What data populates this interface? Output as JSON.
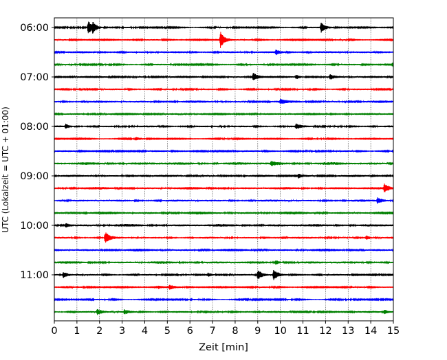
{
  "chart_data": {
    "type": "line",
    "title": "",
    "xlabel": "Zeit  [min]",
    "ylabel": "UTC (Lokalzeit = UTC + 01:00)",
    "xlim": [
      0,
      15
    ],
    "x_ticks": [
      0,
      1,
      2,
      3,
      4,
      5,
      6,
      7,
      8,
      9,
      10,
      11,
      12,
      13,
      14,
      15
    ],
    "x_grid": true,
    "y_grid": false,
    "trace_spacing_minutes": 15,
    "y_tick_labels": [
      {
        "row": 0,
        "label": "06:00"
      },
      {
        "row": 4,
        "label": "07:00"
      },
      {
        "row": 8,
        "label": "08:00"
      },
      {
        "row": 12,
        "label": "09:00"
      },
      {
        "row": 16,
        "label": "10:00"
      },
      {
        "row": 20,
        "label": "11:00"
      }
    ],
    "series": [
      {
        "start": "06:00",
        "color": "#000000",
        "baseline_amp": 0.9,
        "events": [
          {
            "t": 1.5,
            "amp": 10
          },
          {
            "t": 1.7,
            "amp": 6
          },
          {
            "t": 11.8,
            "amp": 7
          }
        ]
      },
      {
        "start": "06:15",
        "color": "#ff0000",
        "baseline_amp": 0.9,
        "events": [
          {
            "t": 7.35,
            "amp": 12
          }
        ]
      },
      {
        "start": "06:30",
        "color": "#0000ff",
        "baseline_amp": 1.3,
        "events": [
          {
            "t": 9.8,
            "amp": 3
          }
        ]
      },
      {
        "start": "06:45",
        "color": "#008000",
        "baseline_amp": 1.0,
        "events": [
          {
            "t": 14.95,
            "amp": 3
          }
        ]
      },
      {
        "start": "07:00",
        "color": "#000000",
        "baseline_amp": 1.4,
        "events": [
          {
            "t": 8.8,
            "amp": 6
          },
          {
            "t": 10.7,
            "amp": 3
          },
          {
            "t": 12.2,
            "amp": 3
          }
        ]
      },
      {
        "start": "07:15",
        "color": "#ff0000",
        "baseline_amp": 1.1,
        "events": []
      },
      {
        "start": "07:30",
        "color": "#0000ff",
        "baseline_amp": 1.5,
        "events": [
          {
            "t": 10.0,
            "amp": 2.5
          }
        ]
      },
      {
        "start": "07:45",
        "color": "#008000",
        "baseline_amp": 1.6,
        "events": []
      },
      {
        "start": "08:00",
        "color": "#000000",
        "baseline_amp": 1.2,
        "events": [
          {
            "t": 0.5,
            "amp": 3
          },
          {
            "t": 10.7,
            "amp": 3
          }
        ]
      },
      {
        "start": "08:15",
        "color": "#ff0000",
        "baseline_amp": 0.8,
        "events": [
          {
            "t": 3.6,
            "amp": 2
          }
        ]
      },
      {
        "start": "08:30",
        "color": "#0000ff",
        "baseline_amp": 1.1,
        "events": []
      },
      {
        "start": "08:45",
        "color": "#008000",
        "baseline_amp": 1.8,
        "events": [
          {
            "t": 9.6,
            "amp": 3
          }
        ]
      },
      {
        "start": "09:00",
        "color": "#000000",
        "baseline_amp": 1.4,
        "events": [
          {
            "t": 10.8,
            "amp": 3
          }
        ]
      },
      {
        "start": "09:15",
        "color": "#ff0000",
        "baseline_amp": 1.6,
        "events": [
          {
            "t": 14.6,
            "amp": 6
          }
        ]
      },
      {
        "start": "09:30",
        "color": "#0000ff",
        "baseline_amp": 1.4,
        "events": [
          {
            "t": 14.3,
            "amp": 4
          }
        ]
      },
      {
        "start": "09:45",
        "color": "#008000",
        "baseline_amp": 1.8,
        "events": []
      },
      {
        "start": "10:00",
        "color": "#000000",
        "baseline_amp": 1.7,
        "events": [
          {
            "t": 0.5,
            "amp": 3
          }
        ]
      },
      {
        "start": "10:15",
        "color": "#ff0000",
        "baseline_amp": 1.3,
        "events": [
          {
            "t": 2.25,
            "amp": 8
          },
          {
            "t": 13.8,
            "amp": 3
          }
        ]
      },
      {
        "start": "10:30",
        "color": "#0000ff",
        "baseline_amp": 1.7,
        "events": []
      },
      {
        "start": "10:45",
        "color": "#008000",
        "baseline_amp": 1.6,
        "events": [
          {
            "t": 9.8,
            "amp": 3
          }
        ]
      },
      {
        "start": "11:00",
        "color": "#000000",
        "baseline_amp": 1.1,
        "events": [
          {
            "t": 0.4,
            "amp": 4
          },
          {
            "t": 9.0,
            "amp": 7
          },
          {
            "t": 9.7,
            "amp": 8
          },
          {
            "t": 6.8,
            "amp": 3
          }
        ]
      },
      {
        "start": "11:15",
        "color": "#ff0000",
        "baseline_amp": 0.9,
        "events": [
          {
            "t": 5.1,
            "amp": 3
          },
          {
            "t": 4.6,
            "amp": 2
          }
        ]
      },
      {
        "start": "11:30",
        "color": "#0000ff",
        "baseline_amp": 0.9,
        "events": []
      },
      {
        "start": "11:45",
        "color": "#008000",
        "baseline_amp": 1.2,
        "events": [
          {
            "t": 1.9,
            "amp": 4
          },
          {
            "t": 3.1,
            "amp": 3
          },
          {
            "t": 14.6,
            "amp": 3
          }
        ]
      }
    ]
  }
}
